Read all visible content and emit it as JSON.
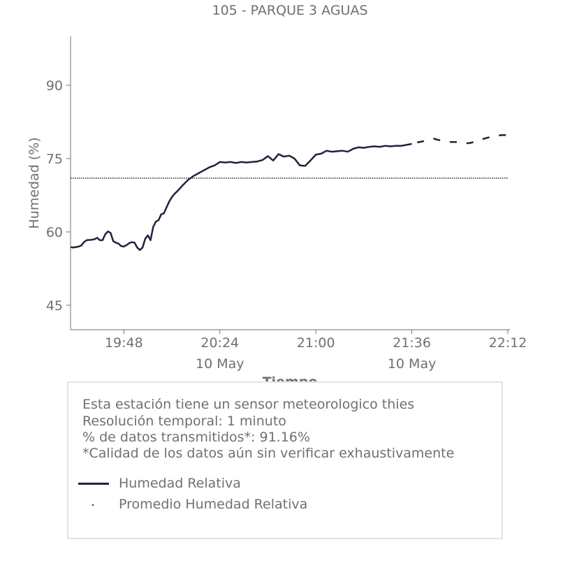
{
  "chart_data": {
    "type": "line",
    "title": "105 - PARQUE 3 AGUAS",
    "xlabel": "Tiempo",
    "ylabel": "Humedad (%)",
    "ylim": [
      40,
      100
    ],
    "xlim": [
      "19:28",
      "22:12"
    ],
    "yticks": [
      45,
      60,
      75,
      90
    ],
    "xticks": [
      {
        "time": "19:48",
        "label": "19:48",
        "sublabel": ""
      },
      {
        "time": "20:24",
        "label": "20:24",
        "sublabel": "10 May"
      },
      {
        "time": "21:00",
        "label": "21:00",
        "sublabel": ""
      },
      {
        "time": "21:36",
        "label": "21:36",
        "sublabel": "10 May"
      },
      {
        "time": "22:12",
        "label": "22:12",
        "sublabel": ""
      }
    ],
    "grid": false,
    "series": [
      {
        "name": "Humedad Relativa",
        "style": "solid",
        "color": "#22223f",
        "x": [
          "19:28",
          "19:29",
          "19:31",
          "19:32",
          "19:33",
          "19:34",
          "19:36",
          "19:37",
          "19:38",
          "19:39",
          "19:40",
          "19:41",
          "19:42",
          "19:43",
          "19:44",
          "19:45",
          "19:46",
          "19:47",
          "19:48",
          "19:49",
          "19:50",
          "19:51",
          "19:52",
          "19:53",
          "19:54",
          "19:55",
          "19:56",
          "19:57",
          "19:58",
          "19:59",
          "20:00",
          "20:01",
          "20:02",
          "20:03",
          "20:04",
          "20:05",
          "20:06",
          "20:07",
          "20:08",
          "20:10",
          "20:12",
          "20:14",
          "20:16",
          "20:18",
          "20:20",
          "20:22",
          "20:24",
          "20:26",
          "20:28",
          "20:30",
          "20:32",
          "20:34",
          "20:36",
          "20:38",
          "20:40",
          "20:42",
          "20:44",
          "20:46",
          "20:48",
          "20:50",
          "20:52",
          "20:54",
          "20:56",
          "20:58",
          "21:00",
          "21:02",
          "21:04",
          "21:06",
          "21:08",
          "21:10",
          "21:12",
          "21:14",
          "21:16",
          "21:18",
          "21:20",
          "21:22",
          "21:24",
          "21:26",
          "21:28",
          "21:30",
          "21:32",
          "21:34",
          "21:36"
        ],
        "y": [
          56.9,
          56.8,
          57.0,
          57.2,
          57.9,
          58.3,
          58.4,
          58.5,
          58.8,
          58.3,
          58.3,
          59.5,
          60.1,
          59.8,
          58.1,
          57.8,
          57.6,
          57.1,
          57.0,
          57.3,
          57.7,
          57.9,
          57.8,
          56.8,
          56.3,
          56.8,
          58.6,
          59.3,
          58.3,
          61.0,
          62.1,
          62.4,
          63.6,
          63.8,
          65.0,
          66.2,
          67.1,
          67.8,
          68.3,
          69.5,
          70.6,
          71.4,
          72.0,
          72.6,
          73.2,
          73.6,
          74.3,
          74.2,
          74.3,
          74.1,
          74.3,
          74.2,
          74.3,
          74.4,
          74.7,
          75.5,
          74.6,
          75.9,
          75.4,
          75.6,
          75.0,
          73.6,
          73.5,
          74.6,
          75.8,
          76.0,
          76.6,
          76.4,
          76.5,
          76.6,
          76.4,
          77.0,
          77.3,
          77.2,
          77.4,
          77.5,
          77.4,
          77.6,
          77.5,
          77.6,
          77.6,
          77.8,
          78.0
        ]
      },
      {
        "name": "",
        "style": "dashed",
        "color": "#22223f",
        "x": [
          "21:38",
          "21:40",
          "21:42",
          "21:44",
          "21:46",
          "21:48",
          "21:50",
          "21:52",
          "21:54",
          "21:56",
          "21:58",
          "22:00",
          "22:02",
          "22:04",
          "22:06",
          "22:08",
          "22:10",
          "22:12"
        ],
        "y": [
          78.3,
          78.5,
          78.9,
          79.1,
          78.8,
          78.6,
          78.4,
          78.4,
          78.3,
          78.1,
          78.2,
          78.5,
          78.9,
          79.2,
          79.5,
          79.7,
          79.8,
          79.8
        ]
      },
      {
        "name": "Promedio Humedad Relativa",
        "style": "dotted",
        "color": "#22223f",
        "x": [
          "19:28",
          "22:12"
        ],
        "y": [
          71.0,
          71.0
        ]
      }
    ],
    "legend_position": "bottom"
  },
  "info": {
    "line1": "Esta estación tiene un sensor meteorologico thies",
    "line2": "Resolución temporal: 1 minuto",
    "line3": "% de datos transmitidos*: 91.16%",
    "line4": "*Calidad de los datos aún sin verificar exhaustivamente"
  }
}
